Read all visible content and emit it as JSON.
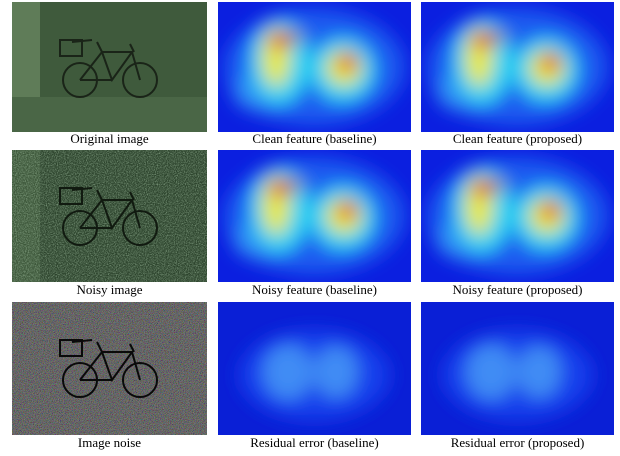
{
  "figure": {
    "panels": [
      {
        "caption": "Original image"
      },
      {
        "caption": "Clean feature (baseline)"
      },
      {
        "caption": "Clean feature (proposed)"
      },
      {
        "caption": "Noisy image"
      },
      {
        "caption": "Noisy feature (baseline)"
      },
      {
        "caption": "Noisy feature (proposed)"
      },
      {
        "caption": "Image noise"
      },
      {
        "caption": "Residual error (baseline)"
      },
      {
        "caption": "Residual error (proposed)"
      }
    ]
  }
}
